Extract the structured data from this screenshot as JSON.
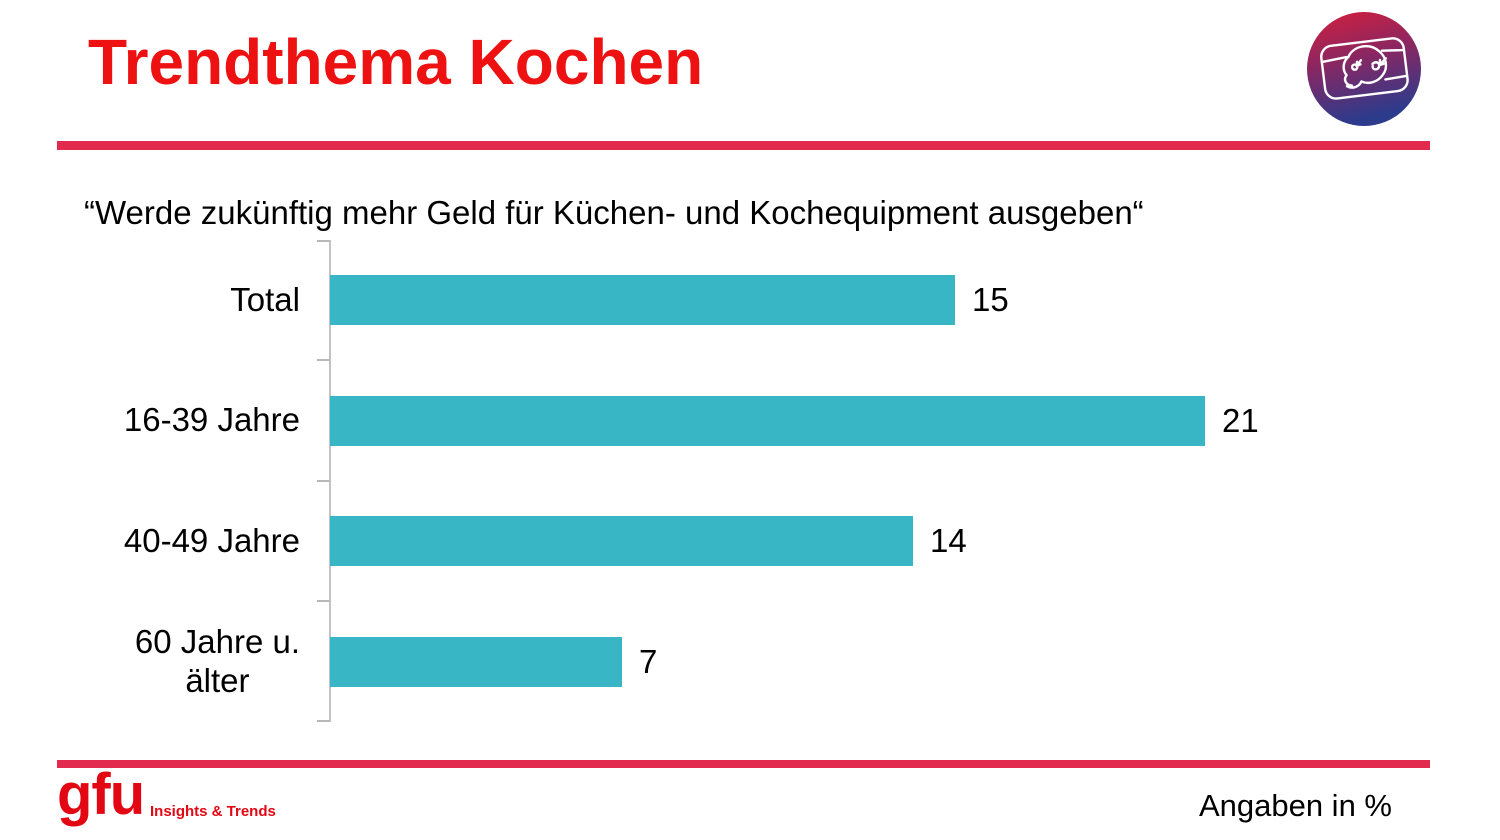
{
  "header": {
    "title": "Trendthema Kochen"
  },
  "subtitle": "“Werde zukünftig mehr Geld für Küchen- und Kochequipment ausgeben“",
  "chart_data": {
    "type": "bar",
    "orientation": "horizontal",
    "title": "“Werde zukünftig mehr Geld für Küchen- und Kochequipment ausgeben“",
    "categories": [
      "Total",
      "16-39 Jahre",
      "40-49 Jahre",
      "60 Jahre u.\nälter"
    ],
    "values": [
      15,
      21,
      14,
      7
    ],
    "value_labels_shown": true,
    "xlabel": "",
    "ylabel": "",
    "xlim": [
      0,
      25
    ],
    "grid": false,
    "legend": false,
    "unit": "Angaben in %",
    "bar_color": "#39b6c5"
  },
  "footer": {
    "logo_text": "gfu",
    "logo_subtext": "Insights & Trends",
    "note": "Angaben in %"
  },
  "colors": {
    "title_red": "#ee1111",
    "rule_red": "#e2294e",
    "bar_teal": "#39b6c5",
    "gfu_red": "#e30613",
    "axis_gray": "#c3c3c3"
  }
}
